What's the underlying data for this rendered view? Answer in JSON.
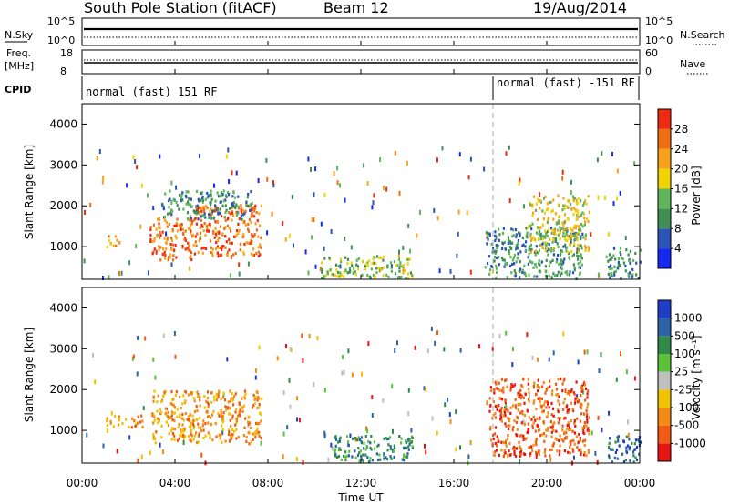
{
  "header": {
    "station": "South Pole Station (fitACF)",
    "beam": "Beam 12",
    "date": "19/Aug/2014"
  },
  "status_panels": {
    "nsky_label": "N.Sky",
    "nsearch_label": "N.Search",
    "freq_label_1": "Freq.",
    "freq_label_2": "[MHz]",
    "nave_label": "Nave",
    "cpid_label": "CPID",
    "noise_left_top": "10^5",
    "noise_left_bottom": "10^0",
    "noise_right_top": "10^5",
    "noise_right_bottom": "10^0",
    "freq_top": "18",
    "freq_bottom": "8",
    "nave_top": "60",
    "nave_bottom": "0",
    "cpid_segments": [
      {
        "label": "normal (fast) 151 RF",
        "start_hour": 0
      },
      {
        "label": "normal (fast) -151 RF",
        "start_hour": 18
      }
    ]
  },
  "axes": {
    "ylabel": "Slant Range [km]",
    "xlabel": "Time UT",
    "x_ticks": [
      "00:00",
      "04:00",
      "08:00",
      "12:00",
      "16:00",
      "20:00",
      "00:00"
    ],
    "y_ticks": [
      "1000",
      "2000",
      "3000",
      "4000"
    ]
  },
  "power_scale": {
    "label": "Power [dB]",
    "ticks": [
      "4",
      "8",
      "12",
      "16",
      "20",
      "24",
      "28"
    ],
    "colors": [
      "#1428f0",
      "#2a55b8",
      "#3f8f55",
      "#5fb55a",
      "#f2d200",
      "#f7a21a",
      "#ee6f12",
      "#ef2a10"
    ]
  },
  "velocity_scale": {
    "label": "Velocity [m s⁻¹]",
    "ticks": [
      "1000",
      "500",
      "100",
      "25",
      "-25",
      "-100",
      "-500",
      "-1000"
    ],
    "colors": [
      "#1e3ec8",
      "#2b62a8",
      "#2f8a4a",
      "#5bc23a",
      "#bfbfbf",
      "#f2c100",
      "#f48a14",
      "#f05a12",
      "#e81410"
    ]
  },
  "chart_data": {
    "type": "heatmap",
    "x_unit": "hours UT",
    "xlim": [
      0,
      24
    ],
    "ylim": [
      200,
      4500
    ],
    "panels": [
      {
        "name": "power",
        "clusters": [
          {
            "t0": 0.9,
            "t1": 1.6,
            "r0": 1000,
            "r1": 1300,
            "level": 5
          },
          {
            "t0": 2.9,
            "t1": 4.8,
            "r0": 700,
            "r1": 1750,
            "level": 6
          },
          {
            "t0": 4.8,
            "t1": 7.7,
            "r0": 800,
            "r1": 2050,
            "level": 6
          },
          {
            "t0": 3.4,
            "t1": 7.3,
            "r0": 1700,
            "r1": 2400,
            "level": 2
          },
          {
            "t0": 10.2,
            "t1": 14.2,
            "r0": 250,
            "r1": 800,
            "level": 3
          },
          {
            "t0": 17.3,
            "t1": 21.5,
            "r0": 250,
            "r1": 1500,
            "level": 2
          },
          {
            "t0": 19.2,
            "t1": 21.8,
            "r0": 900,
            "r1": 2300,
            "level": 4
          },
          {
            "t0": 22.5,
            "t1": 24.0,
            "r0": 250,
            "r1": 1000,
            "level": 2
          }
        ]
      },
      {
        "name": "velocity",
        "clusters": [
          {
            "t0": 0.9,
            "t1": 2.6,
            "r0": 1100,
            "r1": 1400,
            "level": 6
          },
          {
            "t0": 3.0,
            "t1": 7.7,
            "r0": 700,
            "r1": 2000,
            "level": 6
          },
          {
            "t0": 10.8,
            "t1": 14.3,
            "r0": 250,
            "r1": 900,
            "level": 2
          },
          {
            "t0": 17.5,
            "t1": 21.8,
            "r0": 400,
            "r1": 2300,
            "level": 7
          },
          {
            "t0": 22.6,
            "t1": 24.0,
            "r0": 250,
            "r1": 900,
            "level": 1
          }
        ]
      }
    ]
  }
}
